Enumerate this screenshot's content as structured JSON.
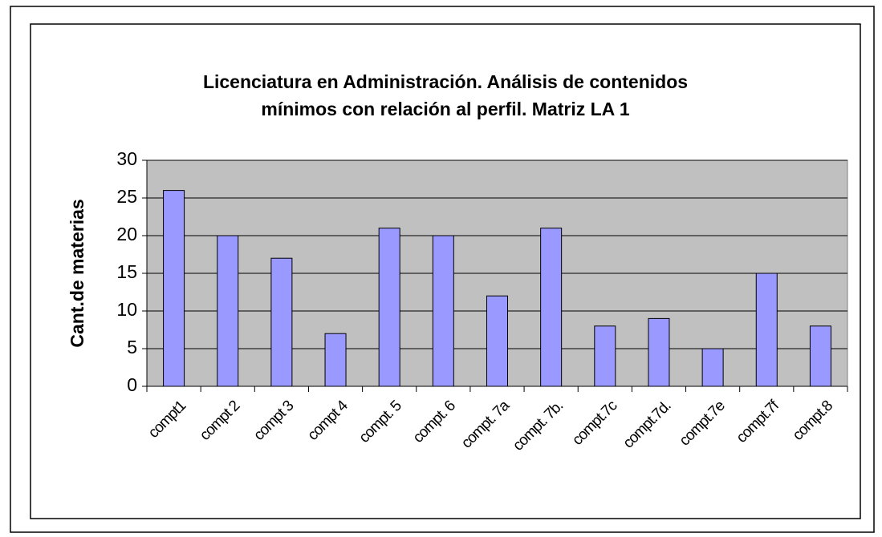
{
  "chart_data": {
    "type": "bar",
    "title": [
      "Licenciatura en Administración. Análisis de contenidos",
      "mínimos con relación al perfil. Matriz LA 1"
    ],
    "y_label": "Cant.de materias",
    "categories": [
      "compt1",
      "compt 2",
      "compt 3",
      "compt 4",
      "compt. 5",
      "compt. 6",
      "compt. 7a",
      "compt. 7b.",
      "compt.7c",
      "compt.7d.",
      "compt.7e",
      "compt.7f",
      "compt.8"
    ],
    "values": [
      26,
      20,
      17,
      7,
      21,
      20,
      12,
      21,
      8,
      9,
      5,
      15,
      8
    ],
    "color": "#9999ff",
    "ylim": [
      0,
      30
    ],
    "yticks": [
      0,
      5,
      10,
      15,
      20,
      25,
      30
    ],
    "grid": true
  }
}
